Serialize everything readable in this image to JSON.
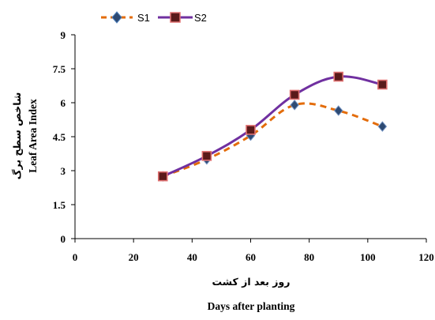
{
  "chart_data": {
    "type": "line",
    "title": "",
    "xlabel": "Days after planting",
    "xlabel_local": "روز بعد از کشت",
    "ylabel": "Leaf Area Index",
    "ylabel_local": "شاخص سطح برگ",
    "xlim": [
      0,
      120
    ],
    "ylim": [
      0,
      9
    ],
    "xticks": [
      0,
      20,
      40,
      60,
      80,
      100,
      120
    ],
    "yticks": [
      0,
      1.5,
      3,
      4.5,
      6,
      7.5,
      9
    ],
    "ytick_labels": [
      "0",
      "1.5",
      "3",
      "4.5",
      "6",
      "7.5",
      "9"
    ],
    "grid": false,
    "legend_position": "top-left",
    "x": [
      30,
      45,
      60,
      75,
      90,
      105
    ],
    "series": [
      {
        "name": "S1",
        "values": [
          2.75,
          3.5,
          4.55,
          5.9,
          5.65,
          4.95
        ],
        "color": "#e36c0a",
        "marker": "diamond",
        "marker_color": "#2e4a73",
        "line_style": "dashed"
      },
      {
        "name": "S2",
        "values": [
          2.75,
          3.65,
          4.8,
          6.35,
          7.15,
          6.8
        ],
        "color": "#7030a0",
        "marker": "square",
        "marker_color": "#5a1a1a",
        "marker_edge": "#e07070",
        "line_style": "solid"
      }
    ]
  }
}
